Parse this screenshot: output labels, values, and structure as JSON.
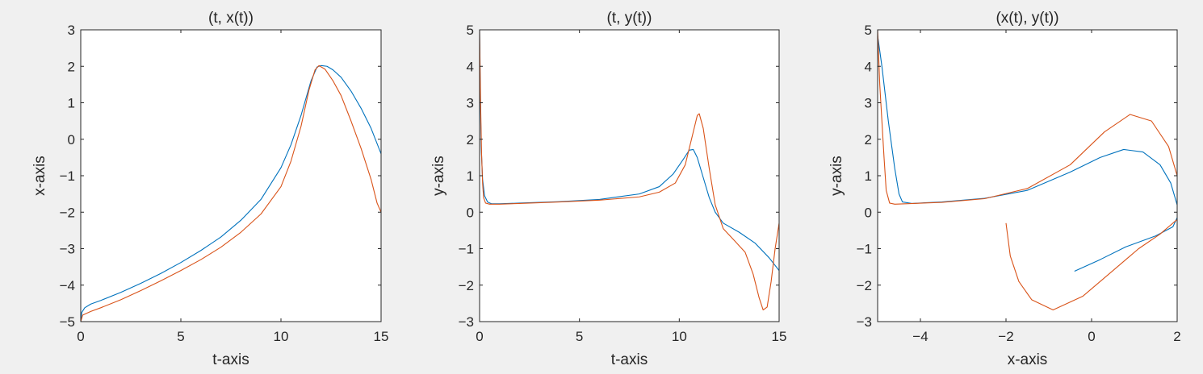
{
  "figure": {
    "background": "#f0f0f0",
    "axes_background": "#ffffff"
  },
  "series_colors": [
    "#0072bd",
    "#d95319"
  ],
  "chart_data": [
    {
      "type": "line",
      "title": "(t, x(t))",
      "xlabel": "t-axis",
      "ylabel": "x-axis",
      "xlim": [
        0,
        15
      ],
      "ylim": [
        -5,
        3
      ],
      "xticks": [
        0,
        5,
        10,
        15
      ],
      "yticks": [
        -5,
        -4,
        -3,
        -2,
        -1,
        0,
        1,
        2,
        3
      ],
      "grid": false,
      "series": [
        {
          "color": "#0072bd",
          "points": [
            [
              0,
              -5.0
            ],
            [
              0.05,
              -4.75
            ],
            [
              0.2,
              -4.62
            ],
            [
              0.5,
              -4.52
            ],
            [
              1,
              -4.42
            ],
            [
              2,
              -4.2
            ],
            [
              3,
              -3.95
            ],
            [
              4,
              -3.68
            ],
            [
              5,
              -3.38
            ],
            [
              6,
              -3.05
            ],
            [
              7,
              -2.68
            ],
            [
              8,
              -2.22
            ],
            [
              9,
              -1.65
            ],
            [
              10,
              -0.78
            ],
            [
              10.5,
              -0.15
            ],
            [
              11,
              0.65
            ],
            [
              11.5,
              1.6
            ],
            [
              11.8,
              1.98
            ],
            [
              12,
              2.02
            ],
            [
              12.3,
              2.0
            ],
            [
              12.6,
              1.9
            ],
            [
              13,
              1.7
            ],
            [
              13.5,
              1.32
            ],
            [
              14,
              0.85
            ],
            [
              14.5,
              0.3
            ],
            [
              15,
              -0.4
            ]
          ]
        },
        {
          "color": "#d95319",
          "points": [
            [
              0,
              -5.0
            ],
            [
              0.1,
              -4.82
            ],
            [
              0.5,
              -4.72
            ],
            [
              1,
              -4.62
            ],
            [
              2,
              -4.4
            ],
            [
              3,
              -4.15
            ],
            [
              4,
              -3.88
            ],
            [
              5,
              -3.6
            ],
            [
              6,
              -3.3
            ],
            [
              7,
              -2.96
            ],
            [
              8,
              -2.55
            ],
            [
              9,
              -2.05
            ],
            [
              10,
              -1.3
            ],
            [
              10.5,
              -0.6
            ],
            [
              11,
              0.35
            ],
            [
              11.4,
              1.35
            ],
            [
              11.7,
              1.9
            ],
            [
              11.9,
              2.02
            ],
            [
              12.2,
              1.92
            ],
            [
              12.6,
              1.6
            ],
            [
              13,
              1.2
            ],
            [
              13.5,
              0.5
            ],
            [
              14,
              -0.25
            ],
            [
              14.5,
              -1.1
            ],
            [
              14.8,
              -1.75
            ],
            [
              15,
              -2.0
            ]
          ]
        }
      ]
    },
    {
      "type": "line",
      "title": "(t, y(t))",
      "xlabel": "t-axis",
      "ylabel": "y-axis",
      "xlim": [
        0,
        15
      ],
      "ylim": [
        -3,
        5
      ],
      "xticks": [
        0,
        5,
        10,
        15
      ],
      "yticks": [
        -3,
        -2,
        -1,
        0,
        1,
        2,
        3,
        4,
        5
      ],
      "grid": false,
      "series": [
        {
          "color": "#0072bd",
          "points": [
            [
              0,
              5.0
            ],
            [
              0.03,
              3.4
            ],
            [
              0.08,
              1.8
            ],
            [
              0.15,
              0.9
            ],
            [
              0.25,
              0.45
            ],
            [
              0.4,
              0.28
            ],
            [
              0.6,
              0.23
            ],
            [
              1,
              0.23
            ],
            [
              2,
              0.25
            ],
            [
              4,
              0.29
            ],
            [
              6,
              0.35
            ],
            [
              8,
              0.5
            ],
            [
              9,
              0.7
            ],
            [
              9.7,
              1.05
            ],
            [
              10.2,
              1.45
            ],
            [
              10.5,
              1.7
            ],
            [
              10.7,
              1.72
            ],
            [
              10.9,
              1.5
            ],
            [
              11.2,
              0.95
            ],
            [
              11.5,
              0.4
            ],
            [
              11.8,
              0.0
            ],
            [
              12.2,
              -0.3
            ],
            [
              13,
              -0.55
            ],
            [
              13.8,
              -0.85
            ],
            [
              14.5,
              -1.25
            ],
            [
              15,
              -1.6
            ]
          ]
        },
        {
          "color": "#d95319",
          "points": [
            [
              0,
              5.0
            ],
            [
              0.05,
              3.0
            ],
            [
              0.1,
              1.6
            ],
            [
              0.15,
              0.8
            ],
            [
              0.2,
              0.4
            ],
            [
              0.3,
              0.25
            ],
            [
              0.5,
              0.22
            ],
            [
              1,
              0.22
            ],
            [
              2,
              0.24
            ],
            [
              4,
              0.28
            ],
            [
              6,
              0.33
            ],
            [
              8,
              0.42
            ],
            [
              9,
              0.55
            ],
            [
              9.8,
              0.8
            ],
            [
              10.3,
              1.3
            ],
            [
              10.7,
              2.2
            ],
            [
              10.9,
              2.65
            ],
            [
              11.0,
              2.7
            ],
            [
              11.2,
              2.3
            ],
            [
              11.5,
              1.2
            ],
            [
              11.8,
              0.2
            ],
            [
              12.2,
              -0.45
            ],
            [
              12.8,
              -0.8
            ],
            [
              13.3,
              -1.1
            ],
            [
              13.7,
              -1.7
            ],
            [
              14.0,
              -2.35
            ],
            [
              14.2,
              -2.68
            ],
            [
              14.4,
              -2.6
            ],
            [
              14.6,
              -1.9
            ],
            [
              14.8,
              -1.0
            ],
            [
              15,
              -0.3
            ]
          ]
        }
      ]
    },
    {
      "type": "line",
      "title": "(x(t), y(t))",
      "xlabel": "x-axis",
      "ylabel": "y-axis",
      "xlim": [
        -5,
        2
      ],
      "ylim": [
        -3,
        5
      ],
      "xticks": [
        -4,
        -2,
        0,
        2
      ],
      "yticks": [
        -3,
        -2,
        -1,
        0,
        1,
        2,
        3,
        4,
        5
      ],
      "grid": false,
      "series": [
        {
          "color": "#0072bd",
          "points": [
            [
              -5.0,
              4.85
            ],
            [
              -4.9,
              4.0
            ],
            [
              -4.75,
              2.5
            ],
            [
              -4.6,
              1.2
            ],
            [
              -4.5,
              0.5
            ],
            [
              -4.42,
              0.28
            ],
            [
              -4.2,
              0.24
            ],
            [
              -3.5,
              0.28
            ],
            [
              -2.5,
              0.38
            ],
            [
              -1.5,
              0.6
            ],
            [
              -0.5,
              1.1
            ],
            [
              0.2,
              1.5
            ],
            [
              0.75,
              1.72
            ],
            [
              1.2,
              1.65
            ],
            [
              1.6,
              1.3
            ],
            [
              1.85,
              0.8
            ],
            [
              2.0,
              0.2
            ],
            [
              2.02,
              -0.1
            ],
            [
              1.9,
              -0.4
            ],
            [
              1.5,
              -0.65
            ],
            [
              0.8,
              -0.95
            ],
            [
              0.2,
              -1.3
            ],
            [
              -0.4,
              -1.62
            ]
          ]
        },
        {
          "color": "#d95319",
          "points": [
            [
              -5.0,
              5.0
            ],
            [
              -4.95,
              3.5
            ],
            [
              -4.85,
              1.5
            ],
            [
              -4.8,
              0.6
            ],
            [
              -4.72,
              0.25
            ],
            [
              -4.6,
              0.22
            ],
            [
              -3.5,
              0.27
            ],
            [
              -2.5,
              0.37
            ],
            [
              -1.5,
              0.65
            ],
            [
              -0.5,
              1.3
            ],
            [
              0.3,
              2.2
            ],
            [
              0.9,
              2.68
            ],
            [
              1.4,
              2.5
            ],
            [
              1.8,
              1.8
            ],
            [
              2.0,
              1.0
            ],
            [
              2.03,
              0.2
            ],
            [
              2.0,
              -0.2
            ],
            [
              1.6,
              -0.6
            ],
            [
              1.1,
              -1.0
            ],
            [
              0.5,
              -1.6
            ],
            [
              -0.2,
              -2.3
            ],
            [
              -0.9,
              -2.68
            ],
            [
              -1.4,
              -2.4
            ],
            [
              -1.7,
              -1.9
            ],
            [
              -1.9,
              -1.2
            ],
            [
              -2.0,
              -0.3
            ]
          ]
        }
      ]
    }
  ]
}
